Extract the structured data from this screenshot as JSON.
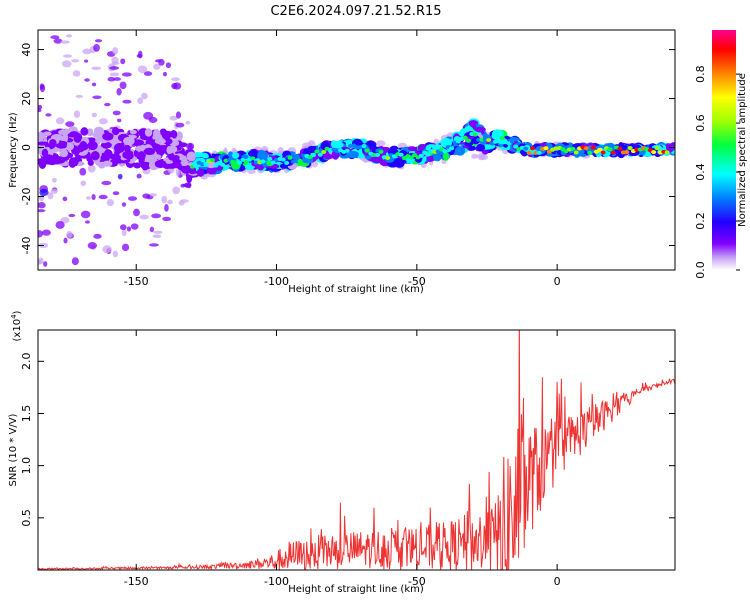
{
  "title": "C2E6.2024.097.21.52.R15",
  "colors": {
    "snr_line": "#ee3333",
    "axis": "#000000"
  },
  "chart_data": [
    {
      "type": "heatmap",
      "name": "spectrogram",
      "xlabel": "Height of straight line (km)",
      "ylabel": "Frequency (Hz)",
      "xlim": [
        -185,
        42
      ],
      "ylim": [
        -50,
        48
      ],
      "xticks": [
        -150,
        -100,
        -50,
        0
      ],
      "xtick_labels": [
        "-150",
        "-100",
        "-50",
        "0"
      ],
      "yticks": [
        -40,
        -20,
        0,
        20,
        40
      ],
      "ytick_labels": [
        "-40",
        "-20",
        "0",
        "20",
        "40"
      ],
      "ridge": {
        "x": [
          -185,
          -160,
          -135,
          -130,
          -120,
          -110,
          -100,
          -90,
          -80,
          -70,
          -60,
          -50,
          -40,
          -33,
          -30,
          -25,
          -20,
          -15,
          -10,
          0,
          10,
          20,
          30,
          40
        ],
        "freq": [
          0,
          0,
          -1,
          -7,
          -6,
          -5,
          -6,
          -4,
          -1,
          0,
          -4,
          -3,
          -1,
          3,
          5,
          2,
          3,
          1,
          -1,
          -1,
          -1,
          -1,
          -1,
          -1
        ],
        "spread": [
          40,
          38,
          30,
          6,
          4,
          4,
          4,
          4,
          4,
          4,
          4,
          4,
          4,
          6,
          8,
          5,
          4,
          3,
          2,
          2,
          2,
          2,
          2,
          2
        ]
      },
      "colorbar": {
        "label": "Normalized spectral amplitude",
        "ticks": [
          0.0,
          0.2,
          0.4,
          0.6,
          0.8
        ],
        "tick_labels": [
          "0.0",
          "0.2",
          "0.4",
          "0.6",
          "0.8"
        ],
        "range": [
          0,
          0.98
        ],
        "colors": [
          "#ffffff",
          "#c9a5f5",
          "#7f00ff",
          "#2200ff",
          "#0080ff",
          "#00ffff",
          "#00ff40",
          "#a0ff00",
          "#ffff00",
          "#ff8000",
          "#ff0000",
          "#ff0090"
        ]
      }
    },
    {
      "type": "line",
      "name": "snr",
      "xlabel": "Height of straight line (km)",
      "ylabel": "SNR (10 * V/V)",
      "y_multiplier": "(x10",
      "y_multiplier_exp": "4",
      "xlim": [
        -185,
        42
      ],
      "ylim": [
        0,
        2.3
      ],
      "xticks": [
        -150,
        -100,
        -50,
        0
      ],
      "xtick_labels": [
        "-150",
        "-100",
        "-50",
        "0"
      ],
      "yticks": [
        0.5,
        1.0,
        1.5,
        2.0
      ],
      "ytick_labels": [
        "0.5",
        "1.0",
        "1.5",
        "2.0"
      ],
      "envelope": {
        "x": [
          -185,
          -140,
          -125,
          -110,
          -100,
          -97,
          -80,
          -70,
          -55,
          -40,
          -30,
          -22,
          -18,
          -15,
          -13,
          -10,
          -5,
          0,
          10,
          20,
          30,
          42
        ],
        "base": [
          0.01,
          0.02,
          0.03,
          0.05,
          0.08,
          0.12,
          0.18,
          0.2,
          0.2,
          0.22,
          0.26,
          0.3,
          0.4,
          0.55,
          0.7,
          0.85,
          1.0,
          1.15,
          1.35,
          1.55,
          1.72,
          1.82
        ],
        "amp": [
          0.01,
          0.02,
          0.03,
          0.06,
          0.15,
          0.25,
          0.3,
          0.3,
          0.35,
          0.4,
          0.5,
          0.6,
          1.4,
          1.4,
          1.5,
          0.9,
          0.7,
          0.5,
          0.35,
          0.2,
          0.05,
          0.03
        ]
      }
    }
  ]
}
